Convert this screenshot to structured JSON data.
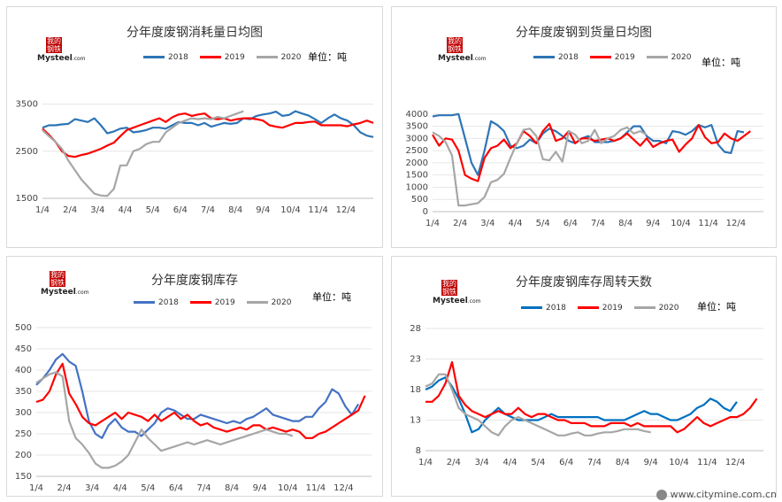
{
  "watermark": "www.citymine.com.cn",
  "logo": {
    "line1": "我的",
    "line2": "钢铁",
    "brand": "Mysteel",
    "suffix": ".com"
  },
  "colors": {
    "2018": "#2e75b6",
    "2019": "#ff0000",
    "2020": "#a6a6a6"
  },
  "chart_data": [
    {
      "type": "line",
      "title": "分年度废钢消耗量日均图",
      "unit": "单位：吨",
      "xlabels": [
        "1/4",
        "2/4",
        "3/4",
        "4/4",
        "5/4",
        "6/4",
        "7/4",
        "8/4",
        "9/4",
        "10/4",
        "11/4",
        "12/4"
      ],
      "ylim": [
        1500,
        4000
      ],
      "yticks": [
        1500,
        2500,
        3500
      ],
      "series": [
        {
          "name": "2018",
          "color": "#2e75b6",
          "values": [
            3000,
            3050,
            3050,
            3070,
            3080,
            3180,
            3150,
            3120,
            3200,
            3050,
            2880,
            2920,
            2980,
            3000,
            2900,
            2920,
            2950,
            3000,
            3000,
            2980,
            3050,
            3120,
            3100,
            3100,
            3050,
            3100,
            3020,
            3060,
            3100,
            3080,
            3100,
            3200,
            3180,
            3250,
            3280,
            3300,
            3340,
            3250,
            3270,
            3350,
            3300,
            3260,
            3180,
            3100,
            3200,
            3280,
            3200,
            3150,
            3050,
            2900,
            2830,
            2800
          ]
        },
        {
          "name": "2019",
          "color": "#ff0000",
          "values": [
            2980,
            2850,
            2700,
            2500,
            2400,
            2380,
            2420,
            2450,
            2500,
            2550,
            2620,
            2680,
            2820,
            2950,
            3000,
            3050,
            3100,
            3150,
            3200,
            3120,
            3220,
            3280,
            3300,
            3250,
            3280,
            3300,
            3200,
            3180,
            3200,
            3150,
            3180,
            3200,
            3200,
            3180,
            3150,
            3050,
            3020,
            3000,
            3050,
            3100,
            3100,
            3120,
            3130,
            3050,
            3050,
            3050,
            3050,
            3030,
            3070,
            3100,
            3150,
            3100
          ]
        },
        {
          "name": "2020",
          "color": "#a6a6a6",
          "values": [
            2950,
            2820,
            2700,
            2550,
            2300,
            2100,
            1900,
            1750,
            1600,
            1560,
            1550,
            1700,
            2200,
            2200,
            2500,
            2550,
            2650,
            2700,
            2700,
            2900,
            3000,
            3100,
            3150,
            3200,
            3180,
            3200,
            3180,
            3230,
            3200,
            3250,
            3300,
            3350
          ]
        }
      ]
    },
    {
      "type": "line",
      "title": "分年度废钢到货量日均图",
      "unit": "单位：吨",
      "xlabels": [
        "1/4",
        "2/4",
        "3/4",
        "4/4",
        "5/4",
        "6/4",
        "7/4",
        "8/4",
        "9/4",
        "10/4",
        "11/4",
        "12/4"
      ],
      "ylim": [
        0,
        4500
      ],
      "yticks": [
        0,
        500,
        1000,
        1500,
        2000,
        2500,
        3000,
        3500,
        4000
      ],
      "series": [
        {
          "name": "2018",
          "color": "#2e75b6",
          "values": [
            3900,
            3950,
            3950,
            3950,
            4000,
            3000,
            2000,
            1500,
            2500,
            3700,
            3550,
            3300,
            2700,
            2600,
            2700,
            2950,
            2800,
            3200,
            3400,
            3300,
            3100,
            2900,
            2800,
            3000,
            3100,
            2850,
            2850,
            2850,
            2900,
            3000,
            3250,
            3500,
            3500,
            3100,
            2900,
            2900,
            2800,
            3300,
            3250,
            3150,
            3300,
            3550,
            3450,
            3550,
            2750,
            2450,
            2400,
            3300,
            3250
          ]
        },
        {
          "name": "2019",
          "color": "#ff0000",
          "values": [
            3150,
            2700,
            3000,
            2950,
            2500,
            1500,
            1350,
            1250,
            2200,
            2600,
            2700,
            2950,
            2600,
            2800,
            3300,
            3100,
            2800,
            3300,
            3600,
            2900,
            3000,
            3300,
            2800,
            3000,
            3000,
            2900,
            2950,
            3000,
            2900,
            3000,
            3200,
            2950,
            2700,
            3000,
            2650,
            2800,
            2900,
            2950,
            2450,
            2750,
            3000,
            3550,
            3050,
            2800,
            2850,
            3200,
            3000,
            2900,
            3100,
            3300
          ]
        },
        {
          "name": "2020",
          "color": "#a6a6a6",
          "values": [
            3250,
            3100,
            2850,
            2300,
            250,
            250,
            300,
            350,
            600,
            1200,
            1300,
            1550,
            2200,
            2800,
            3350,
            3400,
            3100,
            2150,
            2100,
            2450,
            2050,
            3300,
            3150,
            2800,
            2900,
            3350,
            2800,
            3000,
            3100,
            3350,
            3450,
            3200,
            3300,
            3150
          ]
        }
      ]
    },
    {
      "type": "line",
      "title": "分年度废钢库存",
      "unit": "单位：吨",
      "xlabels": [
        "1/4",
        "2/4",
        "3/4",
        "4/4",
        "5/4",
        "6/4",
        "7/4",
        "8/4",
        "9/4",
        "10/4",
        "11/4",
        "12/4"
      ],
      "ylim": [
        150,
        500
      ],
      "yticks": [
        150,
        200,
        250,
        300,
        350,
        400,
        450,
        500
      ],
      "series": [
        {
          "name": "2018",
          "color": "#4472c4",
          "values": [
            365,
            380,
            400,
            425,
            438,
            420,
            410,
            350,
            280,
            250,
            240,
            270,
            285,
            265,
            255,
            255,
            245,
            260,
            275,
            300,
            310,
            305,
            295,
            285,
            285,
            295,
            290,
            285,
            280,
            275,
            280,
            275,
            285,
            290,
            300,
            310,
            295,
            290,
            285,
            280,
            280,
            290,
            290,
            310,
            325,
            355,
            345,
            315,
            295,
            320
          ]
        },
        {
          "name": "2019",
          "color": "#ff0000",
          "values": [
            325,
            330,
            350,
            390,
            415,
            345,
            320,
            290,
            275,
            270,
            280,
            290,
            300,
            285,
            300,
            295,
            290,
            280,
            295,
            280,
            290,
            300,
            285,
            295,
            280,
            270,
            275,
            265,
            260,
            255,
            260,
            265,
            260,
            270,
            270,
            260,
            265,
            260,
            255,
            260,
            255,
            240,
            240,
            250,
            255,
            265,
            275,
            285,
            295,
            305,
            340
          ]
        },
        {
          "name": "2020",
          "color": "#a6a6a6",
          "values": [
            370,
            380,
            390,
            395,
            385,
            280,
            240,
            225,
            205,
            180,
            170,
            170,
            175,
            185,
            200,
            230,
            260,
            240,
            225,
            210,
            215,
            220,
            225,
            230,
            225,
            230,
            235,
            230,
            225,
            230,
            235,
            240,
            245,
            250,
            255,
            260,
            255,
            250,
            250,
            245
          ]
        }
      ]
    },
    {
      "type": "line",
      "title": "分年度废钢库存周转天数",
      "unit": "单位：吨",
      "xlabels": [
        "1/4",
        "2/4",
        "3/4",
        "4/4",
        "5/4",
        "6/4",
        "7/4",
        "8/4",
        "9/4",
        "10/4",
        "11/4",
        "12/4"
      ],
      "ylim": [
        8,
        28
      ],
      "yticks": [
        8,
        13,
        18,
        23,
        28
      ],
      "series": [
        {
          "name": "2018",
          "color": "#0070c0",
          "values": [
            18,
            18.5,
            19.5,
            20,
            18.5,
            16.5,
            14,
            11,
            11.5,
            13,
            14,
            15,
            14,
            13.5,
            13,
            13,
            13,
            13,
            13.5,
            14,
            13.5,
            13.5,
            13.5,
            13.5,
            13.5,
            13.5,
            13.5,
            13,
            13,
            13,
            13,
            13.5,
            14,
            14.5,
            14,
            14,
            13.5,
            13,
            13,
            13.5,
            14,
            15,
            15.5,
            16.5,
            16,
            15,
            14.5,
            16
          ]
        },
        {
          "name": "2019",
          "color": "#ff0000",
          "values": [
            16,
            16,
            17,
            19,
            22.5,
            17,
            15.5,
            14.5,
            14,
            13.5,
            14,
            14.5,
            14,
            14,
            15,
            14,
            13.5,
            14,
            14,
            13.5,
            13,
            13,
            12.5,
            12.5,
            12.5,
            12,
            12,
            12,
            12.5,
            12.5,
            12.5,
            12,
            12.5,
            12,
            12,
            12,
            12,
            12,
            11,
            11.5,
            12.5,
            13.5,
            12.5,
            12,
            12.5,
            13,
            13.5,
            13.5,
            14,
            15,
            16.5
          ]
        },
        {
          "name": "2020",
          "color": "#a6a6a6",
          "values": [
            18.5,
            19,
            20.5,
            20.5,
            18,
            15,
            14,
            13.5,
            13,
            12,
            11,
            10.5,
            12,
            13,
            13.5,
            13,
            12.5,
            12,
            11.5,
            11,
            10.5,
            10.5,
            10.8,
            11,
            10.5,
            10.5,
            10.8,
            11,
            11,
            11.2,
            11.5,
            11.5,
            11.5,
            11.2,
            11
          ]
        }
      ]
    }
  ]
}
